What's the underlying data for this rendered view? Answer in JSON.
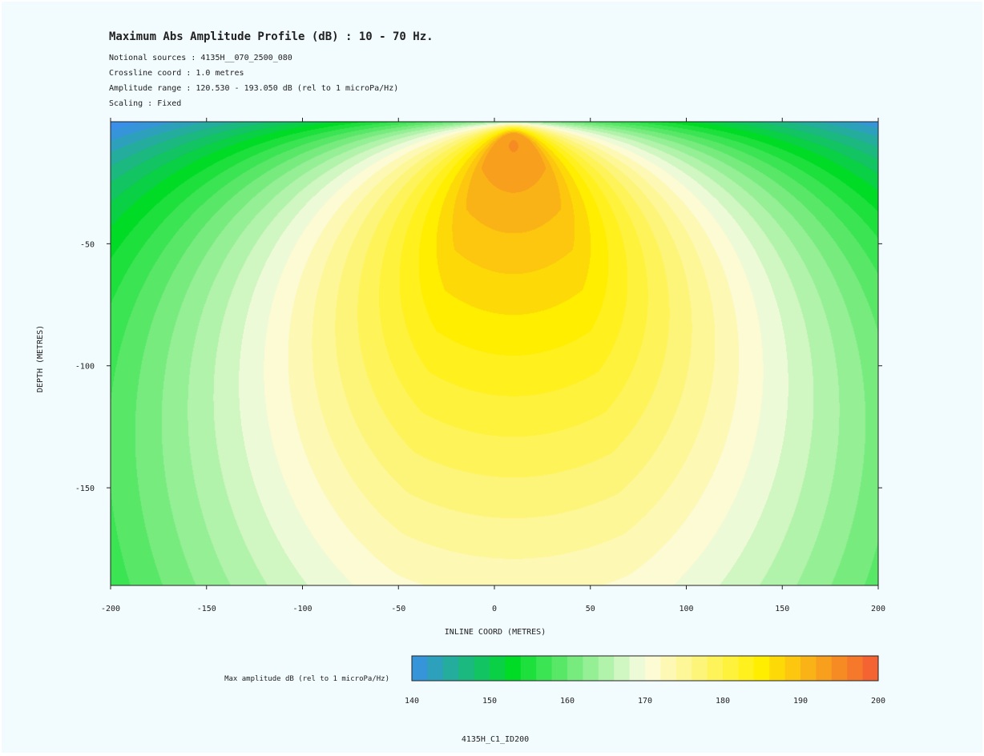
{
  "header": {
    "title": "Maximum Abs Amplitude Profile (dB) : 10 - 70 Hz.",
    "lines": [
      "Notional sources : 4135H__070_2500_080",
      "Crossline coord : 1.0 metres",
      "Amplitude range : 120.530 - 193.050 dB (rel to 1 microPa/Hz)",
      "Scaling : Fixed"
    ]
  },
  "footer": {
    "label": "4135H_C1_ID200"
  },
  "colors": {
    "background": "#f2fbfd",
    "scale": [
      "#3a8fe8",
      "#00dc26",
      "#fcfce2",
      "#ffee00",
      "#f25a36"
    ]
  },
  "chart_data": {
    "type": "heatmap",
    "xlabel": "INLINE COORD (METRES)",
    "ylabel": "DEPTH (METRES)",
    "xlim": [
      -200,
      200
    ],
    "ylim": [
      -190,
      0
    ],
    "x_ticks": [
      -200,
      -150,
      -100,
      -50,
      0,
      50,
      100,
      150,
      200
    ],
    "y_ticks": [
      -50,
      -100,
      -150
    ],
    "source": {
      "x": 10,
      "depth": -10,
      "peak_db": 193.05
    },
    "colorbar": {
      "label": "Max amplitude dB (rel to 1 microPa/Hz)",
      "range": [
        140,
        200
      ],
      "ticks": [
        140,
        150,
        160,
        170,
        180,
        190,
        200
      ],
      "step": 2
    }
  }
}
